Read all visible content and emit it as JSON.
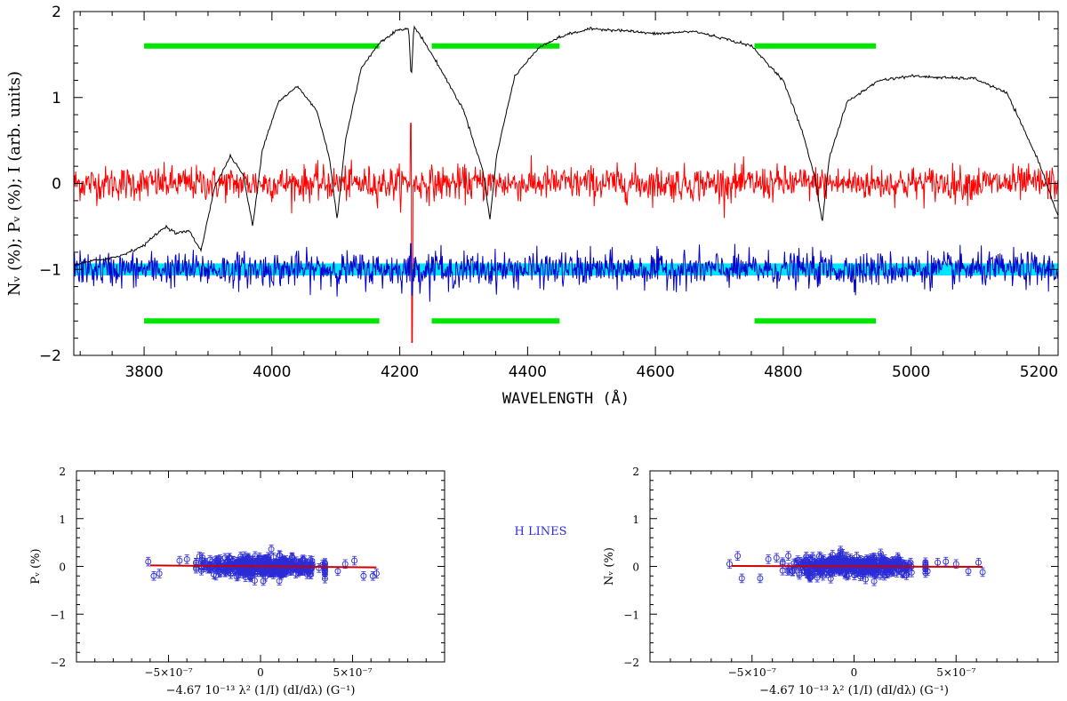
{
  "chart_data": [
    {
      "id": "spectrum",
      "type": "line",
      "xlabel": "WAVELENGTH (Å)",
      "ylabel": "N_V (%); P_V (%); I (arb. units)",
      "xlim": [
        3690,
        5230
      ],
      "ylim": [
        -2,
        2
      ],
      "xticks": [
        3800,
        4000,
        4200,
        4400,
        4600,
        4800,
        5000,
        5200
      ],
      "xtick_labels": [
        "3800",
        "4000",
        "4200",
        "4400",
        "4600",
        "4800",
        "5000",
        "5200"
      ],
      "yticks": [
        -2,
        -1,
        0,
        1,
        2
      ],
      "ytick_labels": [
        "−2",
        "−1",
        "0",
        "1",
        "2"
      ],
      "colors": {
        "intensity": "#000000",
        "null": "#ff0000",
        "stokes_v": "#0000cc",
        "band": "#00e5ff",
        "mask": "#00e600"
      },
      "series": [
        {
          "key": "intensity",
          "x": [
            3690,
            3720,
            3760,
            3800,
            3820,
            3835,
            3850,
            3870,
            3889,
            3910,
            3935,
            3955,
            3970,
            3985,
            4010,
            4040,
            4070,
            4090,
            4102,
            4115,
            4140,
            4170,
            4195,
            4214,
            4218,
            4222,
            4230,
            4260,
            4300,
            4330,
            4341,
            4352,
            4380,
            4420,
            4460,
            4500,
            4550,
            4600,
            4640,
            4660,
            4700,
            4750,
            4800,
            4830,
            4850,
            4861,
            4872,
            4900,
            4950,
            5000,
            5050,
            5100,
            5150,
            5200,
            5230
          ],
          "y": [
            -0.95,
            -0.9,
            -0.85,
            -0.72,
            -0.58,
            -0.5,
            -0.58,
            -0.55,
            -0.78,
            -0.05,
            0.32,
            0.1,
            -0.5,
            0.4,
            0.95,
            1.13,
            0.85,
            0.3,
            -0.42,
            0.5,
            1.35,
            1.65,
            1.78,
            1.8,
            1.2,
            1.82,
            1.75,
            1.38,
            0.85,
            0.15,
            -0.42,
            0.35,
            1.25,
            1.6,
            1.73,
            1.8,
            1.78,
            1.74,
            1.76,
            1.77,
            1.7,
            1.6,
            1.2,
            0.6,
            0.05,
            -0.45,
            0.3,
            0.95,
            1.2,
            1.25,
            1.23,
            1.22,
            1.05,
            0.25,
            -0.38
          ]
        },
        {
          "key": "null",
          "mean": 0,
          "noise": 0.1
        },
        {
          "key": "stokes_v",
          "mean": -1,
          "noise": 0.1
        },
        {
          "key": "band",
          "range": [
            -1.07,
            -0.93
          ]
        }
      ],
      "mask_regions": [
        [
          3800,
          4168
        ],
        [
          4250,
          4450
        ],
        [
          4755,
          4945
        ]
      ],
      "mask_levels": [
        1.6,
        -1.6
      ]
    },
    {
      "id": "pv-fit",
      "type": "scatter",
      "xlabel": "−4.67 10⁻¹³ λ² (1/I) (dI/dλ) (G⁻¹)",
      "ylabel": "P_V (%)",
      "xlim": [
        -1e-06,
        1e-06
      ],
      "ylim": [
        -2,
        2
      ],
      "xtick_labels": [
        "−5×10⁻⁷",
        "0",
        "5×10⁻⁷"
      ],
      "ytick_labels": [
        "−2",
        "−1",
        "0",
        "1",
        "2"
      ],
      "fit": {
        "x": [
          -6e-07,
          6.3e-07
        ],
        "y": [
          0.02,
          -0.02
        ],
        "color": "#cc0000"
      },
      "points": {
        "n": 420,
        "x_sigma": 1.6e-07,
        "y_sigma": 0.1,
        "err": 0.09,
        "color": "#2b2bd6",
        "outliers": {
          "x": [
            -6.1e-07,
            -5.8e-07,
            -5.5e-07,
            -4.4e-07,
            -4e-07,
            -3.5e-07,
            3.5e-07,
            4.2e-07,
            4.6e-07,
            5.1e-07,
            5.6e-07,
            6.1e-07,
            6.3e-07
          ],
          "y": [
            0.1,
            -0.2,
            -0.15,
            0.12,
            0.15,
            0.08,
            0.05,
            -0.1,
            0.05,
            0.12,
            -0.2,
            -0.2,
            -0.15
          ]
        }
      }
    },
    {
      "id": "nv-fit",
      "type": "scatter",
      "xlabel": "−4.67 10⁻¹³ λ² (1/I) (dI/dλ) (G⁻¹)",
      "ylabel": "N_V (%)",
      "xlim": [
        -1e-06,
        1e-06
      ],
      "ylim": [
        -2,
        2
      ],
      "xtick_labels": [
        "−5×10⁻⁷",
        "0",
        "5×10⁻⁷"
      ],
      "ytick_labels": [
        "−2",
        "−1",
        "0",
        "1",
        "2"
      ],
      "fit": {
        "x": [
          -6e-07,
          6.3e-07
        ],
        "y": [
          0.01,
          -0.01
        ],
        "color": "#cc0000"
      },
      "points": {
        "n": 420,
        "x_sigma": 1.6e-07,
        "y_sigma": 0.1,
        "err": 0.09,
        "color": "#2b2bd6",
        "outliers": {
          "x": [
            -6.1e-07,
            -5.7e-07,
            -5.5e-07,
            -4.6e-07,
            -4.2e-07,
            -3.8e-07,
            3.6e-07,
            4.1e-07,
            4.5e-07,
            5e-07,
            5.6e-07,
            6.1e-07,
            6.3e-07
          ],
          "y": [
            0.05,
            0.22,
            -0.25,
            -0.25,
            0.15,
            0.18,
            -0.1,
            0.08,
            0.1,
            0.05,
            -0.1,
            0.08,
            -0.12
          ]
        }
      }
    }
  ],
  "annotation": "H LINES"
}
